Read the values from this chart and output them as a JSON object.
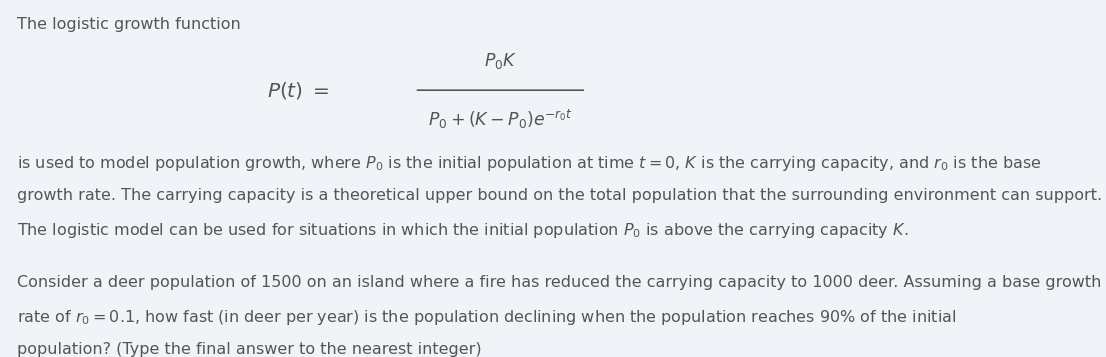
{
  "background_color": "#f0f3f8",
  "text_color": "#555555",
  "fig_width": 11.06,
  "fig_height": 3.57,
  "dpi": 100,
  "line1": "The logistic growth function",
  "formula_lhs": "$P(t) = $",
  "formula_num": "$P_0K$",
  "formula_den": "$P_0+(K-P_0)e^{-r_0 t}$",
  "para1_line1": "is used to model population growth, where $P_0$ is the initial population at time $t = 0$, $K$ is the carrying capacity, and $r_0$ is the base",
  "para1_line2": "growth rate. The carrying capacity is a theoretical upper bound on the total population that the surrounding environment can support.",
  "para1_line3": "The logistic model can be used for situations in which the initial population $P_0$ is above the carrying capacity $K$.",
  "para2_line1": "Consider a deer population of 1500 on an island where a fire has reduced the carrying capacity to 1000 deer. Assuming a base growth",
  "para2_line2": "rate of $r_0 = 0.1$, how fast (in deer per year) is the population declining when the population reaches $90\\%$ of the initial",
  "para2_line3": "population? (Type the final answer to the nearest integer)"
}
